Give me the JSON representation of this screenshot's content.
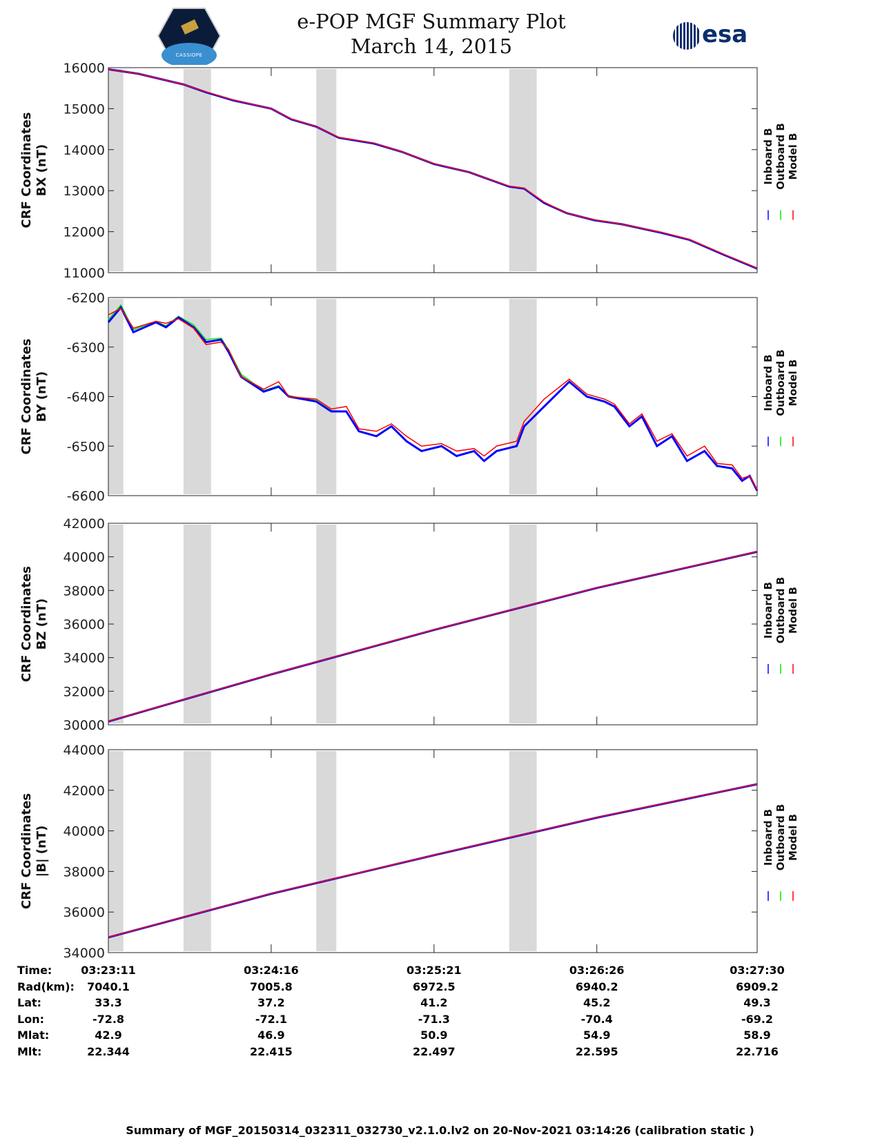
{
  "header": {
    "title": "e-POP MGF Summary Plot",
    "date": "March 14, 2015",
    "mission_logo_text": "CASSIOPE",
    "agency_logo": "esa"
  },
  "legend": [
    "Inboard B",
    "Outboard B",
    "Model B"
  ],
  "colors": {
    "inboard": "#0000ff",
    "outboard": "#00ee00",
    "model": "#ff0000",
    "gap": "#d9d9d9"
  },
  "gaps_seconds": [
    [
      0,
      6
    ],
    [
      30,
      41
    ],
    [
      83,
      91
    ],
    [
      160,
      171
    ]
  ],
  "chart_data": [
    {
      "type": "line",
      "ylabel": [
        "CRF Coordinates",
        "BX (nT)"
      ],
      "ylim": [
        11000,
        16000
      ],
      "yticks": [
        11000,
        12000,
        13000,
        14000,
        15000,
        16000
      ],
      "x": [
        0,
        12,
        30,
        39,
        50,
        65,
        73,
        83,
        92,
        106,
        117,
        130,
        144,
        160,
        166,
        174,
        183,
        194,
        205,
        221,
        232,
        246,
        259
      ],
      "series": [
        {
          "name": "Inboard B",
          "values": [
            15960,
            15850,
            15590,
            15400,
            15200,
            15000,
            14740,
            14560,
            14290,
            14150,
            13950,
            13650,
            13450,
            13100,
            13050,
            12700,
            12450,
            12280,
            12180,
            11970,
            11800,
            11430,
            11100
          ]
        },
        {
          "name": "Outboard B",
          "values": [
            15950,
            15840,
            15580,
            15390,
            15200,
            14990,
            14740,
            14550,
            14290,
            14150,
            13940,
            13640,
            13450,
            13100,
            13040,
            12700,
            12440,
            12270,
            12170,
            11970,
            11800,
            11420,
            11100
          ]
        },
        {
          "name": "Model B",
          "values": [
            15960,
            15850,
            15590,
            15410,
            15210,
            15000,
            14750,
            14560,
            14300,
            14160,
            13950,
            13660,
            13450,
            13110,
            13060,
            12720,
            12450,
            12290,
            12180,
            11980,
            11810,
            11440,
            11110
          ]
        }
      ]
    },
    {
      "type": "line",
      "ylabel": [
        "CRF Coordinates",
        "BY (nT)"
      ],
      "ylim": [
        -6600,
        -6200
      ],
      "yticks": [
        -6600,
        -6500,
        -6400,
        -6300,
        -6200
      ],
      "x": [
        0,
        5,
        10,
        19,
        23,
        28,
        34,
        39,
        45,
        48,
        53,
        62,
        68,
        72,
        83,
        89,
        95,
        100,
        107,
        113,
        119,
        125,
        133,
        139,
        146,
        150,
        155,
        163,
        166,
        174,
        184,
        191,
        198,
        202,
        208,
        213,
        219,
        225,
        231,
        238,
        243,
        249,
        253,
        256,
        259
      ],
      "series": [
        {
          "name": "Inboard B",
          "values": [
            -6250,
            -6220,
            -6270,
            -6250,
            -6260,
            -6240,
            -6260,
            -6290,
            -6285,
            -6310,
            -6360,
            -6390,
            -6380,
            -6400,
            -6410,
            -6430,
            -6430,
            -6470,
            -6480,
            -6460,
            -6490,
            -6510,
            -6500,
            -6520,
            -6510,
            -6530,
            -6510,
            -6500,
            -6460,
            -6420,
            -6370,
            -6400,
            -6410,
            -6420,
            -6460,
            -6440,
            -6500,
            -6480,
            -6530,
            -6510,
            -6540,
            -6545,
            -6570,
            -6560,
            -6590
          ]
        },
        {
          "name": "Outboard B",
          "values": [
            -6245,
            -6215,
            -6265,
            -6248,
            -6257,
            -6238,
            -6255,
            -6285,
            -6282,
            -6305,
            -6355,
            -6388,
            -6378,
            -6398,
            -6408,
            -6428,
            -6430,
            -6470,
            -6480,
            -6460,
            -6490,
            -6510,
            -6500,
            -6520,
            -6510,
            -6530,
            -6510,
            -6500,
            -6460,
            -6420,
            -6370,
            -6400,
            -6410,
            -6420,
            -6460,
            -6440,
            -6500,
            -6480,
            -6530,
            -6510,
            -6540,
            -6545,
            -6570,
            -6560,
            -6590
          ]
        },
        {
          "name": "Model B",
          "values": [
            -6235,
            -6222,
            -6262,
            -6248,
            -6252,
            -6243,
            -6262,
            -6295,
            -6290,
            -6305,
            -6360,
            -6385,
            -6370,
            -6400,
            -6405,
            -6425,
            -6420,
            -6465,
            -6470,
            -6455,
            -6480,
            -6500,
            -6495,
            -6510,
            -6505,
            -6520,
            -6500,
            -6490,
            -6450,
            -6405,
            -6365,
            -6395,
            -6405,
            -6415,
            -6455,
            -6435,
            -6490,
            -6475,
            -6520,
            -6500,
            -6535,
            -6538,
            -6565,
            -6560,
            -6588
          ]
        }
      ]
    },
    {
      "type": "line",
      "ylabel": [
        "CRF Coordinates",
        "BZ (nT)"
      ],
      "ylim": [
        30000,
        42000
      ],
      "yticks": [
        30000,
        32000,
        34000,
        36000,
        38000,
        40000,
        42000
      ],
      "x": [
        0,
        65,
        130,
        195,
        259
      ],
      "series": [
        {
          "name": "Inboard B",
          "values": [
            30200,
            33000,
            35650,
            38150,
            40300
          ]
        },
        {
          "name": "Outboard B",
          "values": [
            30200,
            33000,
            35650,
            38150,
            40300
          ]
        },
        {
          "name": "Model B",
          "values": [
            30210,
            33010,
            35660,
            38160,
            40310
          ]
        }
      ]
    },
    {
      "type": "line",
      "ylabel": [
        "CRF Coordinates",
        "|B| (nT)"
      ],
      "ylim": [
        34000,
        44000
      ],
      "yticks": [
        34000,
        36000,
        38000,
        40000,
        42000,
        44000
      ],
      "x": [
        0,
        65,
        130,
        195,
        259
      ],
      "series": [
        {
          "name": "Inboard B",
          "values": [
            34750,
            36900,
            38800,
            40650,
            42300
          ]
        },
        {
          "name": "Outboard B",
          "values": [
            34750,
            36900,
            38800,
            40650,
            42300
          ]
        },
        {
          "name": "Model B",
          "values": [
            34760,
            36910,
            38810,
            40660,
            42310
          ]
        }
      ]
    }
  ],
  "xlim_seconds": [
    0,
    259
  ],
  "xticks_seconds": [
    0,
    65,
    130,
    195,
    259
  ],
  "table": {
    "labels": [
      "Time:",
      "Rad(km):",
      "Lat:",
      "Lon:",
      "Mlat:",
      "Mlt:"
    ],
    "columns": [
      [
        "03:23:11",
        "7040.1",
        "33.3",
        "-72.8",
        "42.9",
        "22.344"
      ],
      [
        "03:24:16",
        "7005.8",
        "37.2",
        "-72.1",
        "46.9",
        "22.415"
      ],
      [
        "03:25:21",
        "6972.5",
        "41.2",
        "-71.3",
        "50.9",
        "22.497"
      ],
      [
        "03:26:26",
        "6940.2",
        "45.2",
        "-70.4",
        "54.9",
        "22.595"
      ],
      [
        "03:27:30",
        "6909.2",
        "49.3",
        "-69.2",
        "58.9",
        "22.716"
      ]
    ]
  },
  "footer": "Summary of MGF_20150314_032311_032730_v2.1.0.lv2 on 20-Nov-2021 03:14:26 (calibration static )"
}
